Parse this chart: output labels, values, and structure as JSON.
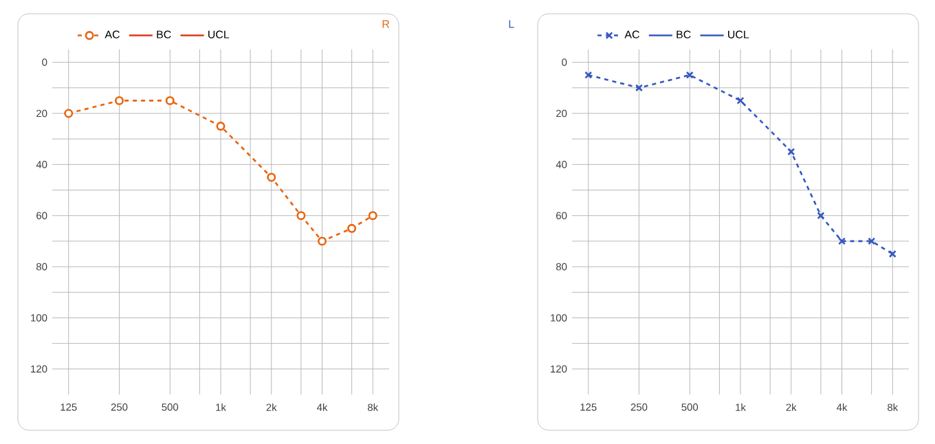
{
  "chart_data": [
    {
      "type": "line",
      "title": "R",
      "x": [
        125,
        250,
        500,
        1000,
        2000,
        3000,
        4000,
        6000,
        8000
      ],
      "log": "x",
      "grid": true,
      "legend": "top left",
      "xlim": [
        100,
        10000
      ],
      "xticks": [
        125,
        250,
        500,
        {
          "value": 750,
          "label": null
        },
        {
          "value": 1000,
          "label": "1k"
        },
        {
          "value": 1500,
          "label": null
        },
        {
          "value": 2000,
          "label": "2k"
        },
        {
          "value": 3000,
          "label": null
        },
        {
          "value": 4000,
          "label": "4k"
        },
        {
          "value": 6000,
          "label": null
        },
        {
          "value": 8000,
          "label": "8k"
        }
      ],
      "ylim": [
        130,
        -5
      ],
      "yticks": [
        0,
        {
          "value": 10,
          "label": null
        },
        20,
        {
          "value": 30,
          "label": null
        },
        40,
        {
          "value": 50,
          "label": null
        },
        60,
        {
          "value": 70,
          "label": null
        },
        80,
        {
          "value": 90,
          "label": null
        },
        100,
        {
          "value": 110,
          "label": null
        },
        120
      ],
      "series": [
        {
          "name": "AC",
          "color": "#e8640c",
          "marker": "circle",
          "line_style": "dashed",
          "values": [
            20,
            15,
            15,
            25,
            45,
            60,
            70,
            65,
            60
          ]
        },
        {
          "name": "BC",
          "color": "#d9381e",
          "marker": "none",
          "line_style": "solid",
          "values": [
            null,
            null,
            null,
            null,
            null,
            null,
            null,
            null,
            null
          ]
        },
        {
          "name": "UCL",
          "color": "#d9381e",
          "marker": "none",
          "line_style": "solid",
          "values": [
            null,
            null,
            null,
            null,
            null,
            null,
            null,
            null,
            null
          ]
        }
      ]
    },
    {
      "type": "line",
      "title": "L",
      "x": [
        125,
        250,
        500,
        1000,
        2000,
        3000,
        4000,
        6000,
        8000
      ],
      "log": "x",
      "grid": true,
      "legend": "top left",
      "xlim": [
        100,
        10000
      ],
      "xticks": [
        125,
        250,
        500,
        {
          "value": 750,
          "label": null
        },
        {
          "value": 1000,
          "label": "1k"
        },
        {
          "value": 1500,
          "label": null
        },
        {
          "value": 2000,
          "label": "2k"
        },
        {
          "value": 3000,
          "label": null
        },
        {
          "value": 4000,
          "label": "4k"
        },
        {
          "value": 6000,
          "label": null
        },
        {
          "value": 8000,
          "label": "8k"
        }
      ],
      "ylim": [
        130,
        -5
      ],
      "yticks": [
        0,
        {
          "value": 10,
          "label": null
        },
        20,
        {
          "value": 30,
          "label": null
        },
        40,
        {
          "value": 50,
          "label": null
        },
        60,
        {
          "value": 70,
          "label": null
        },
        80,
        {
          "value": 90,
          "label": null
        },
        100,
        {
          "value": 110,
          "label": null
        },
        120
      ],
      "series": [
        {
          "name": "AC",
          "color": "#3557c0",
          "marker": "cross",
          "line_style": "dashed",
          "values": [
            5,
            10,
            5,
            15,
            35,
            60,
            70,
            70,
            75
          ]
        },
        {
          "name": "BC",
          "color": "#3557c0",
          "marker": "none",
          "line_style": "solid",
          "values": [
            null,
            null,
            null,
            null,
            null,
            null,
            null,
            null,
            null
          ]
        },
        {
          "name": "UCL",
          "color": "#3557c0",
          "marker": "none",
          "line_style": "solid",
          "values": [
            null,
            null,
            null,
            null,
            null,
            null,
            null,
            null,
            null
          ]
        }
      ]
    }
  ]
}
